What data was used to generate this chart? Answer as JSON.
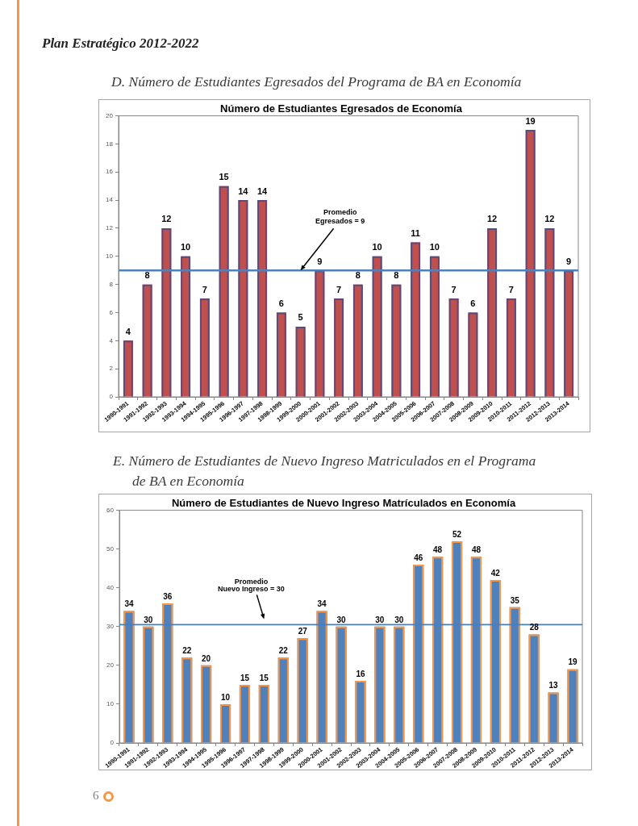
{
  "chart_data": [
    {
      "type": "bar",
      "title": "Número de Estudiantes Egresados de Economía",
      "subtitle": "D. Número de Estudiantes Egresados del Programa de BA en Economía",
      "categories": [
        "1990-1991",
        "1991-1992",
        "1992-1993",
        "1993-1994",
        "1994-1995",
        "1995-1996",
        "1996-1997",
        "1997-1998",
        "1998-1999",
        "1999-2000",
        "2000-2001",
        "2001-2002",
        "2002-2003",
        "2003-2004",
        "2004-2005",
        "2005-2006",
        "2006-2007",
        "2007-2008",
        "2008-2009",
        "2009-2010",
        "2010-2011",
        "2011-2012",
        "2012-2013",
        "2013-2014"
      ],
      "values": [
        4,
        8,
        12,
        10,
        7,
        15,
        14,
        14,
        6,
        5,
        9,
        7,
        8,
        10,
        8,
        11,
        10,
        7,
        6,
        12,
        7,
        19,
        12,
        9
      ],
      "color": "#c0504d",
      "ylim": [
        0,
        20
      ],
      "yticks": [
        0,
        2,
        4,
        6,
        8,
        10,
        12,
        14,
        16,
        18,
        20
      ],
      "data_labels": true,
      "ref_lines": [
        {
          "axis": "y",
          "value": 9,
          "color": "#4f81bd"
        }
      ],
      "annotations": [
        "Plan Estratégico 2012-2022",
        {
          "text": "Promedio\nEgresados = 9",
          "x": "1999-2000",
          "y": 9
        }
      ]
    },
    {
      "type": "bar",
      "title": "Número de Estudiantes de Nuevo Ingreso Matrículados en Economía",
      "subtitle": "E. Número de Estudiantes de Nuevo Ingreso Matriculados en el Programa de BA en Economía",
      "categories": [
        "1990-1991",
        "1991-1992",
        "1992-1993",
        "1993-1994",
        "1994-1995",
        "1995-1996",
        "1996-1997",
        "1997-1998",
        "1998-1999",
        "1999-2000",
        "2000-2001",
        "2001-2002",
        "2002-2003",
        "2003-2004",
        "2004-2005",
        "2005-2006",
        "2006-2007",
        "2007-2008",
        "2008-2009",
        "2009-2010",
        "2010-2011",
        "2011-2012",
        "2012-2013",
        "2013-2014"
      ],
      "values": [
        34,
        30,
        36,
        22,
        20,
        10,
        15,
        15,
        22,
        27,
        34,
        30,
        16,
        30,
        30,
        46,
        48,
        52,
        48,
        42,
        35,
        28,
        13,
        19
      ],
      "color": "#4f81bd",
      "ylim": [
        0,
        60
      ],
      "yticks": [
        0,
        10,
        20,
        30,
        40,
        50,
        60
      ],
      "data_labels": true,
      "ref_lines": [
        {
          "axis": "y",
          "value": 30.5,
          "color": "#4a7ebb"
        }
      ],
      "annotations": [
        "Promedio\nNuevo Ingreso = 30",
        "6"
      ]
    }
  ]
}
